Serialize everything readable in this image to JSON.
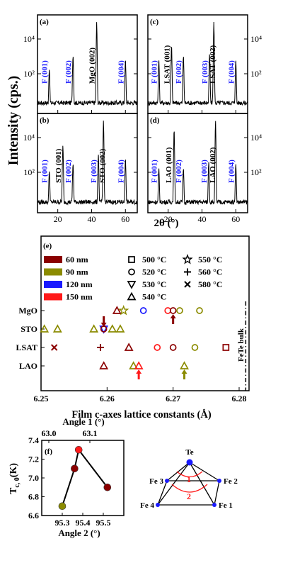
{
  "xrd": {
    "ylabel": "Intensity (cps.)",
    "xlabel": "2θ (°)",
    "xticks": [
      "20",
      "40",
      "60"
    ],
    "yticks_left": [
      "10⁴",
      "10²"
    ],
    "yticks_right": [
      "10⁴",
      "10²"
    ],
    "panels": [
      {
        "tag": "(a)",
        "labels": [
          {
            "text": "F (001)",
            "color": "#1a1aff",
            "x": 15
          },
          {
            "text": "F (002)",
            "color": "#1a1aff",
            "x": 29
          },
          {
            "text": "MgO (002)",
            "color": "#000000",
            "x": 43
          },
          {
            "text": "F (004)",
            "color": "#1a1aff",
            "x": 60
          }
        ]
      },
      {
        "tag": "(c)",
        "labels": [
          {
            "text": "F (001)",
            "color": "#1a1aff",
            "x": 14.5
          },
          {
            "text": "LSAT (001)",
            "color": "#000000",
            "x": 22
          },
          {
            "text": "F (002)",
            "color": "#1a1aff",
            "x": 29
          },
          {
            "text": "F (003)",
            "color": "#1a1aff",
            "x": 44.5
          },
          {
            "text": "LSAT (002)",
            "color": "#000000",
            "x": 49
          },
          {
            "text": "F (004)",
            "color": "#1a1aff",
            "x": 60
          }
        ]
      },
      {
        "tag": "(b)",
        "labels": [
          {
            "text": "F (001)",
            "color": "#1a1aff",
            "x": 15
          },
          {
            "text": "STO (001)",
            "color": "#000000",
            "x": 23
          },
          {
            "text": "F (002)",
            "color": "#1a1aff",
            "x": 29
          },
          {
            "text": "F (003)",
            "color": "#1a1aff",
            "x": 44
          },
          {
            "text": "STO (002)",
            "color": "#000000",
            "x": 49
          },
          {
            "text": "F (004)",
            "color": "#1a1aff",
            "x": 60
          }
        ]
      },
      {
        "tag": "(d)",
        "labels": [
          {
            "text": "F (001)",
            "color": "#1a1aff",
            "x": 14.5
          },
          {
            "text": "LAO (001)",
            "color": "#000000",
            "x": 23
          },
          {
            "text": "F (002)",
            "color": "#1a1aff",
            "x": 29
          },
          {
            "text": "F (003)",
            "color": "#1a1aff",
            "x": 44
          },
          {
            "text": "LAO (002)",
            "color": "#000000",
            "x": 49
          },
          {
            "text": "F (004)",
            "color": "#1a1aff",
            "x": 60
          }
        ]
      }
    ]
  },
  "lattice": {
    "tag": "(e)",
    "xlabel": "Film c-axes lattice constants (Å)",
    "xticks": [
      6.25,
      6.26,
      6.27,
      6.28
    ],
    "xlim": [
      6.25,
      6.2815
    ],
    "rows": [
      "MgO",
      "STO",
      "LSAT",
      "LAO"
    ],
    "bulk_label": "FeTe bulk",
    "bulk_value": 6.281,
    "legend_thickness": [
      {
        "label": "60 nm",
        "color": "#8b0000"
      },
      {
        "label": "90 nm",
        "color": "#8b8b00"
      },
      {
        "label": "120 nm",
        "color": "#1a1aff"
      },
      {
        "label": "150 nm",
        "color": "#ff1a1a"
      }
    ],
    "legend_temperature": [
      {
        "label": "500 °C",
        "marker": "square"
      },
      {
        "label": "520 °C",
        "marker": "circle"
      },
      {
        "label": "530 °C",
        "marker": "triangle-down"
      },
      {
        "label": "540 °C",
        "marker": "triangle-up"
      },
      {
        "label": "550 °C",
        "marker": "star"
      },
      {
        "label": "560 °C",
        "marker": "plus"
      },
      {
        "label": "580 °C",
        "marker": "cross"
      }
    ],
    "points": [
      {
        "row": "MgO",
        "x": 6.2615,
        "marker": "triangle-up",
        "color": "#8b0000"
      },
      {
        "row": "MgO",
        "x": 6.2625,
        "marker": "star",
        "color": "#8b8b00"
      },
      {
        "row": "MgO",
        "x": 6.2655,
        "marker": "circle",
        "color": "#1a1aff"
      },
      {
        "row": "MgO",
        "x": 6.2692,
        "marker": "circle",
        "color": "#ff1a1a"
      },
      {
        "row": "MgO",
        "x": 6.27,
        "marker": "circle",
        "color": "#8b0000"
      },
      {
        "row": "MgO",
        "x": 6.271,
        "marker": "circle",
        "color": "#8b8b00"
      },
      {
        "row": "MgO",
        "x": 6.274,
        "marker": "circle",
        "color": "#8b8b00"
      },
      {
        "row": "STO",
        "x": 6.2505,
        "marker": "triangle-up",
        "color": "#8b8b00"
      },
      {
        "row": "STO",
        "x": 6.2525,
        "marker": "triangle-up",
        "color": "#8b8b00"
      },
      {
        "row": "STO",
        "x": 6.258,
        "marker": "triangle-up",
        "color": "#8b8b00"
      },
      {
        "row": "STO",
        "x": 6.2595,
        "marker": "triangle-down",
        "color": "#1a1aff"
      },
      {
        "row": "STO",
        "x": 6.2595,
        "marker": "circle",
        "color": "#8b0000"
      },
      {
        "row": "STO",
        "x": 6.2608,
        "marker": "triangle-up",
        "color": "#8b8b00"
      },
      {
        "row": "STO",
        "x": 6.262,
        "marker": "triangle-up",
        "color": "#8b8b00"
      },
      {
        "row": "LSAT",
        "x": 6.252,
        "marker": "cross",
        "color": "#8b0000"
      },
      {
        "row": "LSAT",
        "x": 6.259,
        "marker": "plus",
        "color": "#8b0000"
      },
      {
        "row": "LSAT",
        "x": 6.2633,
        "marker": "triangle-up",
        "color": "#8b0000"
      },
      {
        "row": "LSAT",
        "x": 6.2676,
        "marker": "circle",
        "color": "#ff1a1a"
      },
      {
        "row": "LSAT",
        "x": 6.27,
        "marker": "circle",
        "color": "#8b0000"
      },
      {
        "row": "LSAT",
        "x": 6.2733,
        "marker": "circle",
        "color": "#8b8b00"
      },
      {
        "row": "LSAT",
        "x": 6.278,
        "marker": "square",
        "color": "#8b0000"
      },
      {
        "row": "LAO",
        "x": 6.2595,
        "marker": "triangle-up",
        "color": "#8b0000"
      },
      {
        "row": "LAO",
        "x": 6.264,
        "marker": "triangle-up",
        "color": "#8b8b00"
      },
      {
        "row": "LAO",
        "x": 6.2648,
        "marker": "triangle-up",
        "color": "#ff1a1a"
      },
      {
        "row": "LAO",
        "x": 6.2717,
        "marker": "triangle-up",
        "color": "#8b8b00"
      }
    ],
    "arrows": [
      {
        "row": "STO",
        "x": 6.2595,
        "dir": "down",
        "color": "#8b0000"
      },
      {
        "row": "MgO",
        "x": 6.27,
        "dir": "up",
        "color": "#8b0000"
      },
      {
        "row": "LAO",
        "x": 6.2648,
        "dir": "up",
        "color": "#ff1a1a"
      },
      {
        "row": "LAO",
        "x": 6.2717,
        "dir": "up",
        "color": "#8b8b00"
      }
    ]
  },
  "chart_data": [
    {
      "type": "scatter",
      "title": "(e)",
      "xlabel": "Film c-axes lattice constants (Å)",
      "xlim": [
        6.25,
        6.2815
      ],
      "categories": [
        "MgO",
        "STO",
        "LSAT",
        "LAO"
      ],
      "reference_line": {
        "label": "FeTe bulk",
        "x": 6.281
      }
    },
    {
      "type": "line",
      "title": "(f)",
      "xlabel": "Angle 2 (°)",
      "x2label": "Angle 1 (°)",
      "ylabel": "T_c,0 (K)",
      "xlim": [
        95.2,
        95.6
      ],
      "x2ticks": [
        63.0,
        63.1
      ],
      "ylim": [
        6.6,
        7.4
      ],
      "series": [
        {
          "x": [
            95.3,
            95.36,
            95.38,
            95.52
          ],
          "y": [
            6.7,
            7.1,
            7.3,
            6.9
          ],
          "colors": [
            "#8b8b00",
            "#8b0000",
            "#ff1a1a",
            "#8b0000"
          ]
        }
      ]
    }
  ],
  "tc": {
    "tag": "(f)",
    "ylabel_main": "T",
    "ylabel_sub": "c, 0",
    "ylabel_unit": "(K)",
    "xlabel": "Angle 2 (°)",
    "x2label": "Angle 1 (°)",
    "yticks": [
      "6.6",
      "6.8",
      "7.0",
      "7.2",
      "7.4"
    ],
    "xticks": [
      "95.3",
      "95.4",
      "95.5"
    ],
    "x2ticks": [
      "63.0",
      "63.1"
    ],
    "inset": {
      "atoms": [
        {
          "label": "Te",
          "color": "#1a1aff"
        },
        {
          "label": "Fe 3",
          "color": "#1a1aff"
        },
        {
          "label": "Fe 2",
          "color": "#1a1aff"
        },
        {
          "label": "Fe 4",
          "color": "#1a1aff"
        },
        {
          "label": "Fe 1",
          "color": "#1a1aff"
        }
      ],
      "angles": [
        "1",
        "2"
      ]
    }
  }
}
